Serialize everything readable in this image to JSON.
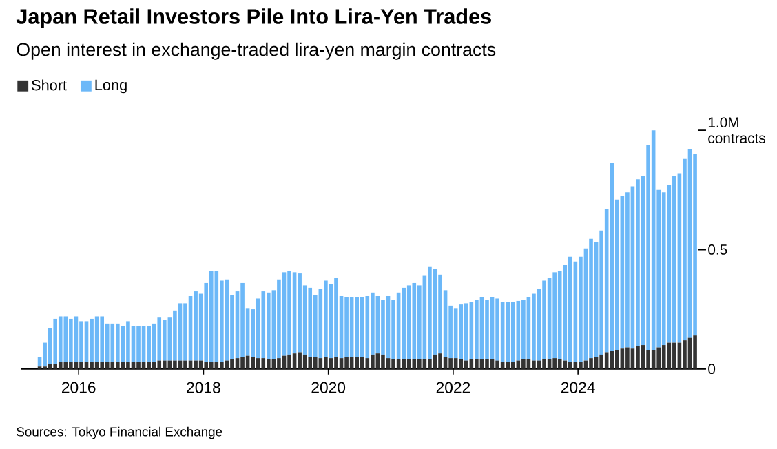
{
  "chart_data": {
    "type": "bar",
    "stacked": true,
    "title": "Japan Retail Investors Pile Into Lira-Yen Trades",
    "subtitle": "Open interest in exchange-traded lira-yen margin contracts",
    "annotations": [
      "Sources: Tokyo Financial Exchange"
    ],
    "x": [
      "2015-05",
      "2015-06",
      "2015-07",
      "2015-08",
      "2015-09",
      "2015-10",
      "2015-11",
      "2015-12",
      "2016-01",
      "2016-02",
      "2016-03",
      "2016-04",
      "2016-05",
      "2016-06",
      "2016-07",
      "2016-08",
      "2016-09",
      "2016-10",
      "2016-11",
      "2016-12",
      "2017-01",
      "2017-02",
      "2017-03",
      "2017-04",
      "2017-05",
      "2017-06",
      "2017-07",
      "2017-08",
      "2017-09",
      "2017-10",
      "2017-11",
      "2017-12",
      "2018-01",
      "2018-02",
      "2018-03",
      "2018-04",
      "2018-05",
      "2018-06",
      "2018-07",
      "2018-08",
      "2018-09",
      "2018-10",
      "2018-11",
      "2018-12",
      "2019-01",
      "2019-02",
      "2019-03",
      "2019-04",
      "2019-05",
      "2019-06",
      "2019-07",
      "2019-08",
      "2019-09",
      "2019-10",
      "2019-11",
      "2019-12",
      "2020-01",
      "2020-02",
      "2020-03",
      "2020-04",
      "2020-05",
      "2020-06",
      "2020-07",
      "2020-08",
      "2020-09",
      "2020-10",
      "2020-11",
      "2020-12",
      "2021-01",
      "2021-02",
      "2021-03",
      "2021-04",
      "2021-05",
      "2021-06",
      "2021-07",
      "2021-08",
      "2021-09",
      "2021-10",
      "2021-11",
      "2021-12",
      "2022-01",
      "2022-02",
      "2022-03",
      "2022-04",
      "2022-05",
      "2022-06",
      "2022-07",
      "2022-08",
      "2022-09",
      "2022-10",
      "2022-11",
      "2022-12",
      "2023-01",
      "2023-02",
      "2023-03",
      "2023-04",
      "2023-05",
      "2023-06",
      "2023-07",
      "2023-08",
      "2023-09",
      "2023-10",
      "2023-11",
      "2023-12",
      "2024-01",
      "2024-02",
      "2024-03",
      "2024-04",
      "2024-05",
      "2024-06",
      "2024-07",
      "2024-08",
      "2024-09",
      "2024-10",
      "2024-11",
      "2024-12",
      "2025-01",
      "2025-02",
      "2025-03",
      "2025-04",
      "2025-05",
      "2025-06",
      "2025-07",
      "2025-08",
      "2025-09",
      "2025-10",
      "2025-11"
    ],
    "series": [
      {
        "name": "Short",
        "color": "#333333",
        "values": [
          0.01,
          0.01,
          0.02,
          0.02,
          0.03,
          0.03,
          0.03,
          0.03,
          0.03,
          0.03,
          0.03,
          0.03,
          0.03,
          0.03,
          0.03,
          0.03,
          0.03,
          0.03,
          0.03,
          0.03,
          0.03,
          0.03,
          0.03,
          0.035,
          0.035,
          0.035,
          0.035,
          0.035,
          0.035,
          0.035,
          0.035,
          0.035,
          0.03,
          0.03,
          0.03,
          0.03,
          0.035,
          0.04,
          0.045,
          0.05,
          0.055,
          0.05,
          0.045,
          0.045,
          0.04,
          0.04,
          0.045,
          0.055,
          0.06,
          0.065,
          0.07,
          0.06,
          0.05,
          0.05,
          0.045,
          0.05,
          0.045,
          0.05,
          0.045,
          0.05,
          0.05,
          0.05,
          0.05,
          0.045,
          0.06,
          0.065,
          0.06,
          0.045,
          0.04,
          0.04,
          0.04,
          0.04,
          0.04,
          0.04,
          0.04,
          0.04,
          0.06,
          0.065,
          0.05,
          0.045,
          0.045,
          0.04,
          0.035,
          0.04,
          0.04,
          0.04,
          0.04,
          0.04,
          0.035,
          0.03,
          0.03,
          0.03,
          0.035,
          0.04,
          0.04,
          0.035,
          0.035,
          0.04,
          0.04,
          0.045,
          0.04,
          0.035,
          0.03,
          0.03,
          0.03,
          0.035,
          0.045,
          0.05,
          0.06,
          0.07,
          0.075,
          0.08,
          0.085,
          0.09,
          0.085,
          0.095,
          0.1,
          0.08,
          0.08,
          0.09,
          0.1,
          0.11,
          0.11,
          0.11,
          0.12,
          0.13,
          0.14
        ]
      },
      {
        "name": "Long",
        "color": "#6cb8f8",
        "values": [
          0.04,
          0.1,
          0.15,
          0.19,
          0.19,
          0.19,
          0.18,
          0.19,
          0.17,
          0.17,
          0.18,
          0.19,
          0.19,
          0.16,
          0.16,
          0.16,
          0.15,
          0.17,
          0.15,
          0.15,
          0.15,
          0.15,
          0.16,
          0.18,
          0.17,
          0.18,
          0.21,
          0.24,
          0.24,
          0.27,
          0.29,
          0.28,
          0.33,
          0.38,
          0.38,
          0.34,
          0.34,
          0.27,
          0.28,
          0.31,
          0.2,
          0.2,
          0.25,
          0.28,
          0.28,
          0.29,
          0.33,
          0.35,
          0.35,
          0.34,
          0.33,
          0.29,
          0.29,
          0.26,
          0.29,
          0.32,
          0.31,
          0.33,
          0.26,
          0.25,
          0.25,
          0.25,
          0.25,
          0.26,
          0.26,
          0.24,
          0.23,
          0.26,
          0.25,
          0.28,
          0.3,
          0.31,
          0.32,
          0.31,
          0.35,
          0.39,
          0.36,
          0.33,
          0.28,
          0.22,
          0.21,
          0.23,
          0.24,
          0.24,
          0.25,
          0.26,
          0.25,
          0.26,
          0.26,
          0.25,
          0.25,
          0.25,
          0.25,
          0.25,
          0.26,
          0.28,
          0.3,
          0.33,
          0.34,
          0.36,
          0.37,
          0.4,
          0.44,
          0.42,
          0.44,
          0.47,
          0.5,
          0.48,
          0.52,
          0.6,
          0.79,
          0.63,
          0.64,
          0.65,
          0.68,
          0.7,
          0.71,
          0.86,
          0.92,
          0.66,
          0.64,
          0.66,
          0.7,
          0.71,
          0.76,
          0.79,
          0.76
        ]
      }
    ],
    "xlim": [
      "2015-02",
      "2025-12"
    ],
    "xticks": [
      "2016",
      "2018",
      "2020",
      "2022",
      "2024"
    ],
    "ylim": [
      0,
      1
    ],
    "yticks": [
      0,
      0.5,
      {
        "value": 1,
        "label": "1.0M contracts"
      }
    ],
    "legend": "top left",
    "grid": false
  }
}
